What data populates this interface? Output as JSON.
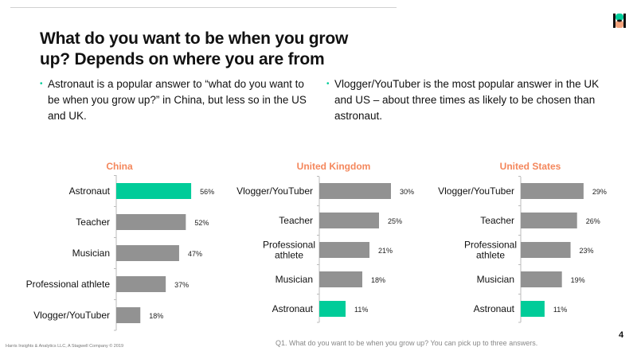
{
  "title": "What do you want to be when you grow up? Depends on where you are from",
  "bullets": [
    "Astronaut is a popular answer to “what do you want to be when you grow up?” in China, but less so in the US and UK.",
    "Vlogger/YouTuber is the most popular answer in the UK and US – about three times as likely to be chosen than astronaut."
  ],
  "colors": {
    "highlight": "#00cc99",
    "bar": "#929292",
    "title": "#f4875c"
  },
  "chart_data": [
    {
      "type": "bar",
      "orientation": "horizontal",
      "title": "China",
      "categories": [
        "Astronaut",
        "Teacher",
        "Musician",
        "Professional athlete",
        "Vlogger/YouTuber"
      ],
      "values": [
        56,
        52,
        47,
        37,
        18
      ],
      "labels": [
        "56%",
        "52%",
        "47%",
        "37%",
        "18%"
      ],
      "highlight": "Astronaut"
    },
    {
      "type": "bar",
      "orientation": "horizontal",
      "title": "United Kingdom",
      "categories": [
        "Vlogger/YouTuber",
        "Teacher",
        "Professional athlete",
        "Musician",
        "Astronaut"
      ],
      "values": [
        30,
        25,
        21,
        18,
        11
      ],
      "labels": [
        "30%",
        "25%",
        "21%",
        "18%",
        "11%"
      ],
      "highlight": "Astronaut"
    },
    {
      "type": "bar",
      "orientation": "horizontal",
      "title": "United States",
      "categories": [
        "Vlogger/YouTuber",
        "Teacher",
        "Professional athlete",
        "Musician",
        "Astronaut"
      ],
      "values": [
        29,
        26,
        23,
        19,
        11
      ],
      "labels": [
        "29%",
        "26%",
        "23%",
        "19%",
        "11%"
      ],
      "highlight": "Astronaut"
    }
  ],
  "footer": "Harris Insights & Analytics LLC, A Stagwell Company © 2019",
  "note": "Q1. What do you want to be when you grow up? You can pick up to three answers.",
  "page_number": "4"
}
